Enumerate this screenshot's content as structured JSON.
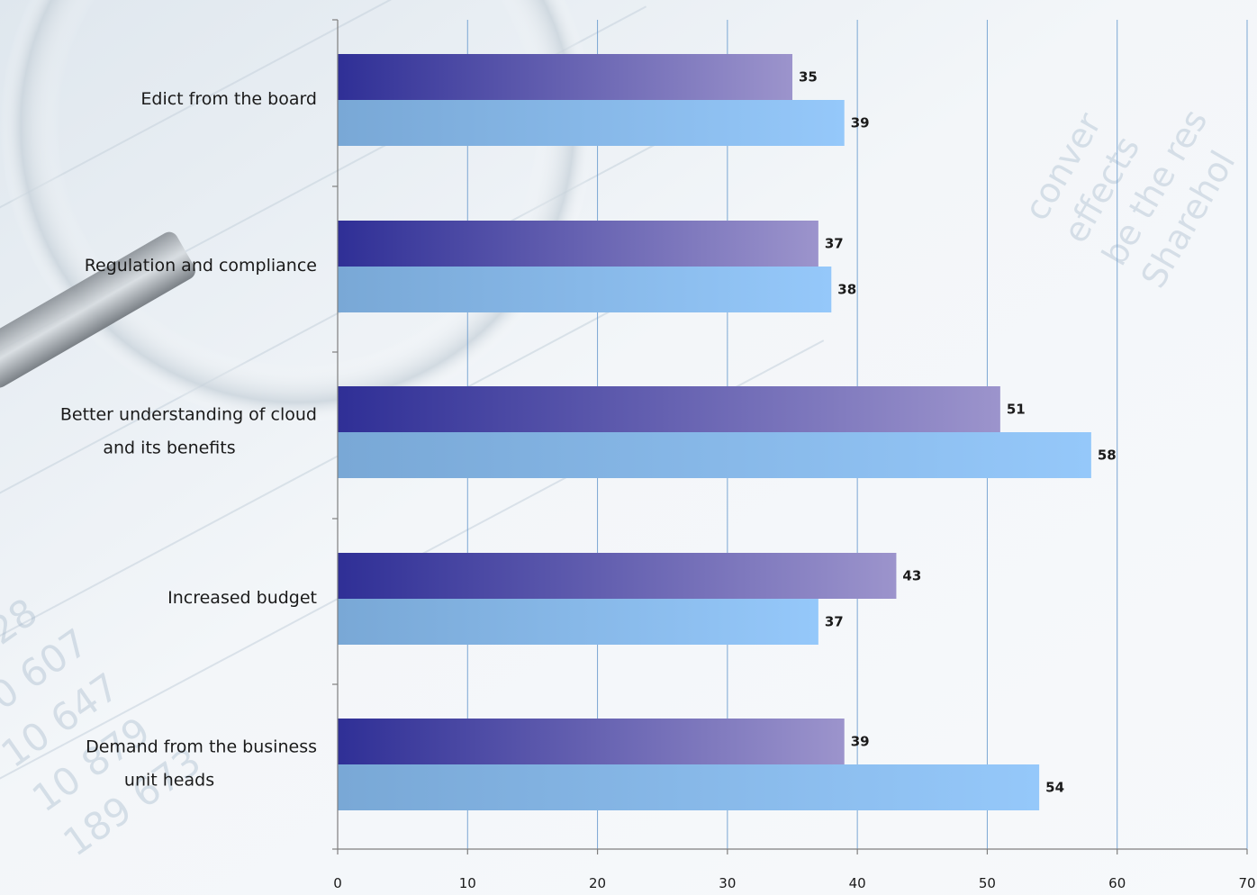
{
  "chart_data": {
    "type": "bar",
    "orientation": "horizontal",
    "categories": [
      "Edict from the board",
      "Regulation and compliance",
      "Better understanding of cloud and its benefits",
      "Increased budget",
      "Demand from the business unit heads"
    ],
    "category_lines": [
      [
        "Edict from the board"
      ],
      [
        "Regulation and compliance"
      ],
      [
        "Better understanding of cloud",
        "and its benefits"
      ],
      [
        "Increased budget"
      ],
      [
        "Demand from the business",
        "unit heads"
      ]
    ],
    "series": [
      {
        "values": [
          35,
          37,
          51,
          43,
          39
        ],
        "color": "#2f2f96",
        "color_end": "#9c94cc"
      },
      {
        "values": [
          39,
          38,
          58,
          37,
          54
        ],
        "color": "#79a8d6",
        "color_end": "#95c8fa"
      }
    ],
    "xlim": [
      0,
      70
    ],
    "xticks": [
      0,
      10,
      20,
      30,
      40,
      50,
      60,
      70
    ],
    "grid": true,
    "data_labels": true,
    "legend": "none",
    "title": "",
    "xlabel": "",
    "ylabel": ""
  }
}
